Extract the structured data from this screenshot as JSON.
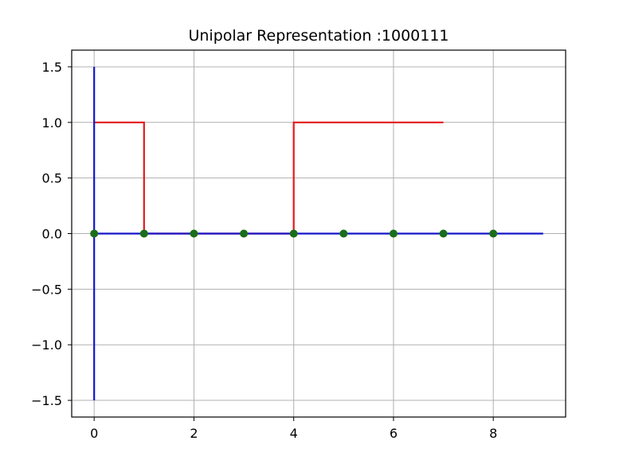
{
  "chart_data": {
    "type": "line",
    "title": "Unipolar Representation :1000111",
    "xlabel": "",
    "ylabel": "",
    "xlim": [
      -0.45,
      9.45
    ],
    "ylim": [
      -1.65,
      1.65
    ],
    "grid": true,
    "x_ticks": [
      0,
      2,
      4,
      6,
      8
    ],
    "x_tick_labels": [
      "0",
      "2",
      "4",
      "6",
      "8"
    ],
    "y_ticks": [
      1.5,
      1.0,
      0.5,
      0.0,
      -0.5,
      -1.0,
      -1.5
    ],
    "y_tick_labels": [
      "1.5",
      "1.0",
      "0.5",
      "0.0",
      "−0.5",
      "−1.0",
      "−1.5"
    ],
    "series": [
      {
        "role": "signal",
        "style": "step",
        "color": "#e41a1c",
        "points": [
          [
            0,
            1
          ],
          [
            1,
            1
          ],
          [
            1,
            0
          ],
          [
            4,
            0
          ],
          [
            4,
            1
          ],
          [
            7,
            1
          ]
        ]
      },
      {
        "role": "x-axis-line",
        "style": "line",
        "color": "#1515c8",
        "points": [
          [
            0,
            0
          ],
          [
            9,
            0
          ]
        ]
      },
      {
        "role": "y-axis-line",
        "style": "line",
        "color": "#1515c8",
        "points": [
          [
            0,
            -1.5
          ],
          [
            0,
            1.5
          ]
        ]
      },
      {
        "role": "markers",
        "style": "scatter",
        "color": "#1a6e1a",
        "points": [
          [
            0,
            0
          ],
          [
            1,
            0
          ],
          [
            2,
            0
          ],
          [
            3,
            0
          ],
          [
            4,
            0
          ],
          [
            5,
            0
          ],
          [
            6,
            0
          ],
          [
            7,
            0
          ],
          [
            8,
            0
          ]
        ]
      }
    ]
  }
}
